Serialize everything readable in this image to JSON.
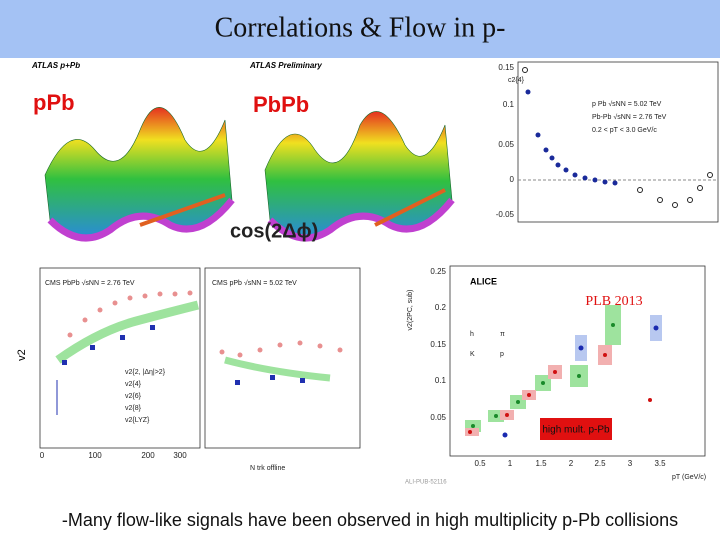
{
  "header": {
    "title": "Correlations & Flow in p-"
  },
  "panels": {
    "atlas": {
      "left_label": "pPb",
      "right_label": "PbPb",
      "left_experiment": "ATLAS p+Pb",
      "right_experiment": "ATLAS Preliminary",
      "axis_label": "cos(2Δϕ)"
    },
    "c2": {
      "y_label": "c2{4}",
      "legend": [
        "p Pb √sNN = 5.02 TeV",
        "Pb-Pb √sNN = 2.76 TeV",
        "0.2 < pT < 3.0 GeV/c"
      ],
      "yticks": [
        "0.15",
        "0.1",
        "0.05",
        "0",
        "-0.05"
      ]
    },
    "cms": {
      "left_header": "CMS PbPb √sNN = 2.76 TeV",
      "right_header": "CMS pPb √sNN = 5.02 TeV",
      "y_label": "v2",
      "x_label": "N trk offline",
      "legend": [
        "v2{2, |Δη|>2}",
        "v2{4}",
        "v2{6}",
        "v2{8}",
        "v2{LYZ}"
      ],
      "xticks": [
        "0",
        "100",
        "200",
        "300"
      ]
    },
    "alice": {
      "title": "ALICE",
      "reference": "PLB 2013",
      "badge": "high mult. p-Pb",
      "y_label": "v2(2PC, sub)",
      "x_label": "pT (GeV/c)",
      "yticks": [
        "0.25",
        "0.2",
        "0.15",
        "0.1",
        "0.05"
      ],
      "xticks": [
        "0.5",
        "1",
        "1.5",
        "2",
        "2.5",
        "3",
        "3.5"
      ],
      "legend": [
        "h",
        "π",
        "K",
        "p"
      ],
      "note": "ALI-PUB-52116"
    }
  },
  "caption": "-Many flow-like signals have been observed  in high multiplicity p-Pb collisions"
}
